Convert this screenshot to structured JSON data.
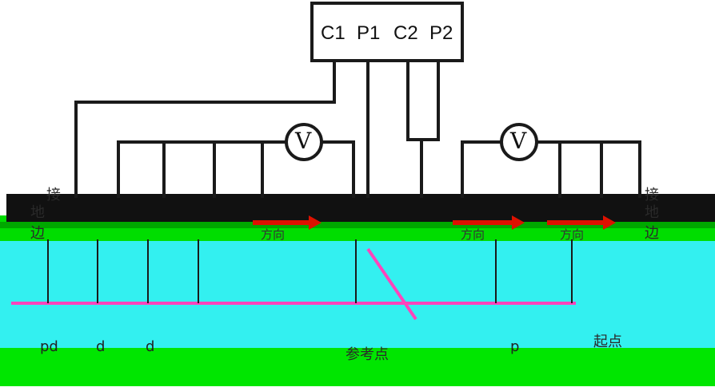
{
  "meter": {
    "terminals": [
      "C1",
      "P1",
      "C2",
      "P2"
    ]
  },
  "voltmeter_symbol": "V",
  "labels": {
    "left_vertical": [
      "接",
      "地",
      "边"
    ],
    "right_vertical": [
      "接",
      "地",
      "边"
    ],
    "direction_1": "方向",
    "direction_2": "方向",
    "direction_3": "方向",
    "spacing_letters": [
      "pd",
      "d",
      "d"
    ],
    "reference_point": "参考点",
    "start_point": "起点",
    "misc_pp": "p"
  },
  "colors": {
    "wire": "#1a1a1a",
    "ground_band": "#111111",
    "surface_green": "#00dd00",
    "soil_cyan": "#33f0f0",
    "measure_line": "#ff44bb",
    "arrow_red": "#dd1100"
  }
}
